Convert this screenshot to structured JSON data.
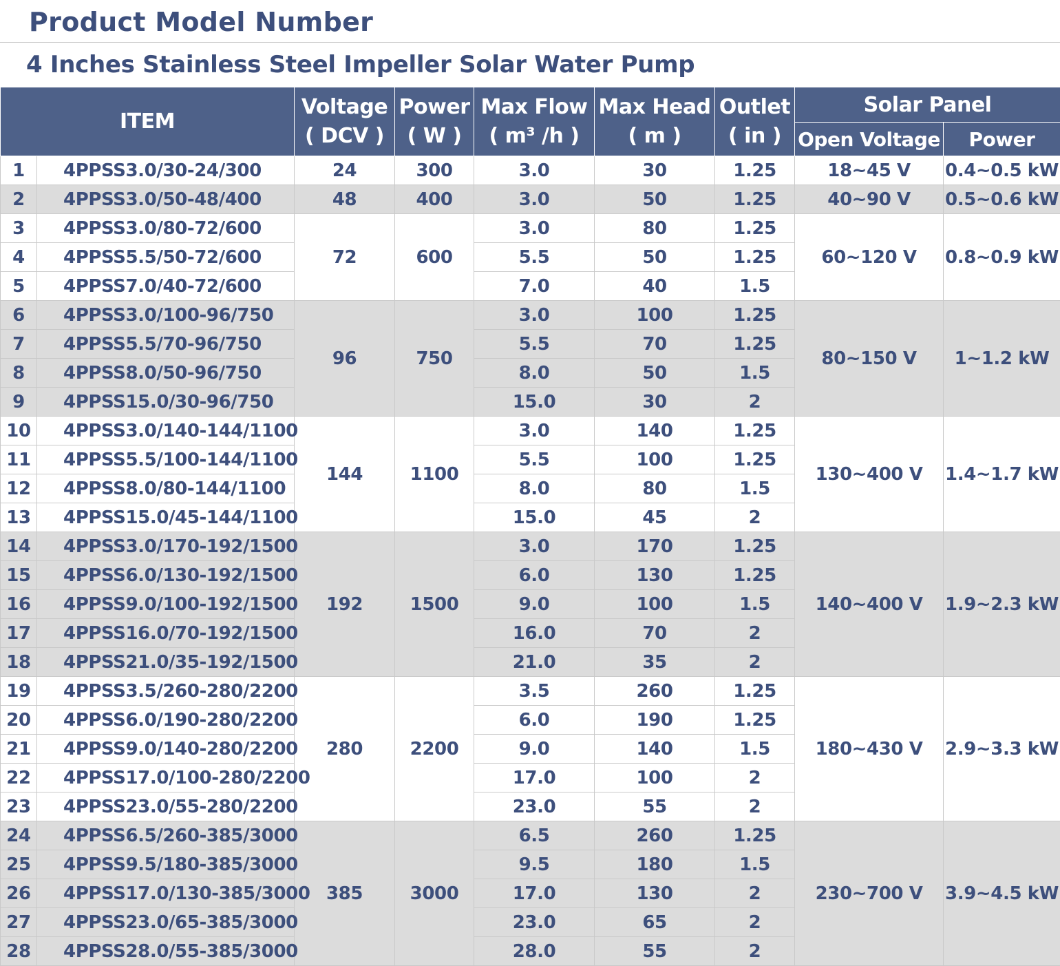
{
  "heading": "Product Model Number",
  "subheading": "4 Inches Stainless Steel Impeller Solar Water Pump",
  "columns": {
    "item": "ITEM",
    "voltage": [
      "Voltage",
      "( DCV )"
    ],
    "power": [
      "Power",
      "( W )"
    ],
    "max_flow": [
      "Max Flow",
      "( m³ /h )"
    ],
    "max_head": [
      "Max Head",
      "( m )"
    ],
    "outlet": [
      "Outlet",
      "( in )"
    ],
    "solar_panel": "Solar Panel",
    "open_voltage": "Open Voltage",
    "panel_power": "Power"
  },
  "colors": {
    "header_bg": "#4e6189",
    "text": "#3d4f7c",
    "shade": "#dcdcdc"
  },
  "groups": [
    {
      "voltage": "24",
      "power": "300",
      "open_voltage": "18~45 V",
      "panel_power": "0.4~0.5 kW",
      "shaded": false,
      "rows": [
        {
          "no": "1",
          "model": "4PPSS3.0/30-24/300",
          "flow": "3.0",
          "head": "30",
          "outlet": "1.25"
        }
      ]
    },
    {
      "voltage": "48",
      "power": "400",
      "open_voltage": "40~90 V",
      "panel_power": "0.5~0.6 kW",
      "shaded": true,
      "rows": [
        {
          "no": "2",
          "model": "4PPSS3.0/50-48/400",
          "flow": "3.0",
          "head": "50",
          "outlet": "1.25"
        }
      ]
    },
    {
      "voltage": "72",
      "power": "600",
      "open_voltage": "60~120 V",
      "panel_power": "0.8~0.9 kW",
      "shaded": false,
      "rows": [
        {
          "no": "3",
          "model": "4PPSS3.0/80-72/600",
          "flow": "3.0",
          "head": "80",
          "outlet": "1.25"
        },
        {
          "no": "4",
          "model": "4PPSS5.5/50-72/600",
          "flow": "5.5",
          "head": "50",
          "outlet": "1.25"
        },
        {
          "no": "5",
          "model": "4PPSS7.0/40-72/600",
          "flow": "7.0",
          "head": "40",
          "outlet": "1.5"
        }
      ]
    },
    {
      "voltage": "96",
      "power": "750",
      "open_voltage": "80~150 V",
      "panel_power": "1~1.2 kW",
      "shaded": true,
      "rows": [
        {
          "no": "6",
          "model": "4PPSS3.0/100-96/750",
          "flow": "3.0",
          "head": "100",
          "outlet": "1.25"
        },
        {
          "no": "7",
          "model": "4PPSS5.5/70-96/750",
          "flow": "5.5",
          "head": "70",
          "outlet": "1.25"
        },
        {
          "no": "8",
          "model": "4PPSS8.0/50-96/750",
          "flow": "8.0",
          "head": "50",
          "outlet": "1.5"
        },
        {
          "no": "9",
          "model": "4PPSS15.0/30-96/750",
          "flow": "15.0",
          "head": "30",
          "outlet": "2"
        }
      ]
    },
    {
      "voltage": "144",
      "power": "1100",
      "open_voltage": "130~400 V",
      "panel_power": "1.4~1.7 kW",
      "shaded": false,
      "rows": [
        {
          "no": "10",
          "model": "4PPSS3.0/140-144/1100",
          "flow": "3.0",
          "head": "140",
          "outlet": "1.25"
        },
        {
          "no": "11",
          "model": "4PPSS5.5/100-144/1100",
          "flow": "5.5",
          "head": "100",
          "outlet": "1.25"
        },
        {
          "no": "12",
          "model": "4PPSS8.0/80-144/1100",
          "flow": "8.0",
          "head": "80",
          "outlet": "1.5"
        },
        {
          "no": "13",
          "model": "4PPSS15.0/45-144/1100",
          "flow": "15.0",
          "head": "45",
          "outlet": "2"
        }
      ]
    },
    {
      "voltage": "192",
      "power": "1500",
      "open_voltage": "140~400 V",
      "panel_power": "1.9~2.3 kW",
      "shaded": true,
      "rows": [
        {
          "no": "14",
          "model": "4PPSS3.0/170-192/1500",
          "flow": "3.0",
          "head": "170",
          "outlet": "1.25"
        },
        {
          "no": "15",
          "model": "4PPSS6.0/130-192/1500",
          "flow": "6.0",
          "head": "130",
          "outlet": "1.25"
        },
        {
          "no": "16",
          "model": "4PPSS9.0/100-192/1500",
          "flow": "9.0",
          "head": "100",
          "outlet": "1.5"
        },
        {
          "no": "17",
          "model": "4PPSS16.0/70-192/1500",
          "flow": "16.0",
          "head": "70",
          "outlet": "2"
        },
        {
          "no": "18",
          "model": "4PPSS21.0/35-192/1500",
          "flow": "21.0",
          "head": "35",
          "outlet": "2"
        }
      ]
    },
    {
      "voltage": "280",
      "power": "2200",
      "open_voltage": "180~430 V",
      "panel_power": "2.9~3.3 kW",
      "shaded": false,
      "rows": [
        {
          "no": "19",
          "model": "4PPSS3.5/260-280/2200",
          "flow": "3.5",
          "head": "260",
          "outlet": "1.25"
        },
        {
          "no": "20",
          "model": "4PPSS6.0/190-280/2200",
          "flow": "6.0",
          "head": "190",
          "outlet": "1.25"
        },
        {
          "no": "21",
          "model": "4PPSS9.0/140-280/2200",
          "flow": "9.0",
          "head": "140",
          "outlet": "1.5"
        },
        {
          "no": "22",
          "model": "4PPSS17.0/100-280/2200",
          "flow": "17.0",
          "head": "100",
          "outlet": "2"
        },
        {
          "no": "23",
          "model": "4PPSS23.0/55-280/2200",
          "flow": "23.0",
          "head": "55",
          "outlet": "2"
        }
      ]
    },
    {
      "voltage": "385",
      "power": "3000",
      "open_voltage": "230~700 V",
      "panel_power": "3.9~4.5 kW",
      "shaded": true,
      "rows": [
        {
          "no": "24",
          "model": "4PPSS6.5/260-385/3000",
          "flow": "6.5",
          "head": "260",
          "outlet": "1.25"
        },
        {
          "no": "25",
          "model": "4PPSS9.5/180-385/3000",
          "flow": "9.5",
          "head": "180",
          "outlet": "1.5"
        },
        {
          "no": "26",
          "model": "4PPSS17.0/130-385/3000",
          "flow": "17.0",
          "head": "130",
          "outlet": "2"
        },
        {
          "no": "27",
          "model": "4PPSS23.0/65-385/3000",
          "flow": "23.0",
          "head": "65",
          "outlet": "2"
        },
        {
          "no": "28",
          "model": "4PPSS28.0/55-385/3000",
          "flow": "28.0",
          "head": "55",
          "outlet": "2"
        }
      ]
    }
  ]
}
